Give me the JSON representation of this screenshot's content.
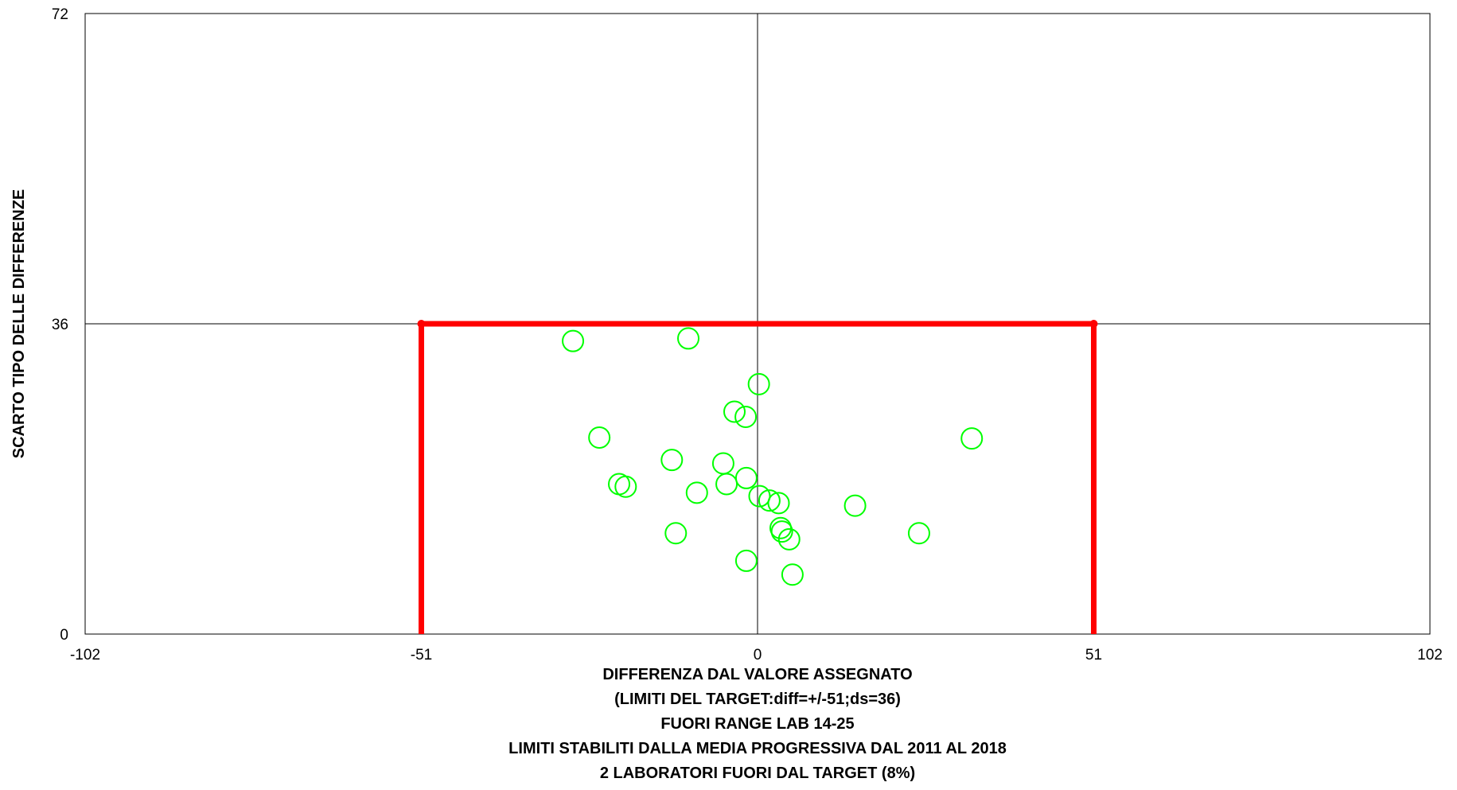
{
  "chart_data": {
    "type": "scatter",
    "title": "",
    "xlabel_lines": [
      "DIFFERENZA DAL VALORE ASSEGNATO",
      "(LIMITI DEL TARGET:diff=+/-51;ds=36)",
      "FUORI RANGE LAB 14-25",
      "LIMITI STABILITI DALLA MEDIA PROGRESSIVA DAL 2011 AL 2018",
      "2 LABORATORI FUORI DAL TARGET (8%)"
    ],
    "ylabel": "SCARTO TIPO DELLE DIFFERENZE",
    "xlim": [
      -102,
      102
    ],
    "ylim": [
      0,
      72
    ],
    "x_ticks": [
      -102,
      -51,
      0,
      51,
      102
    ],
    "x_tick_labels": [
      "-102",
      "-51",
      "0",
      "51",
      "102"
    ],
    "y_ticks": [
      0,
      36,
      72
    ],
    "y_tick_labels": [
      "0",
      "36",
      "72"
    ],
    "grid": {
      "horizontal_at": [
        36
      ],
      "vertical_at": [
        0
      ]
    },
    "target_box": {
      "x_min": -51,
      "x_max": 51,
      "y_max": 36,
      "color": "#ff0000"
    },
    "marker": {
      "shape": "open-circle",
      "color": "#00ff00"
    },
    "series": [
      {
        "points": [
          {
            "x": -28,
            "y": 34.0
          },
          {
            "x": -10.5,
            "y": 34.3
          },
          {
            "x": 0.2,
            "y": 29.0
          },
          {
            "x": -3.5,
            "y": 25.8
          },
          {
            "x": -1.8,
            "y": 25.2
          },
          {
            "x": -24.0,
            "y": 22.8
          },
          {
            "x": 32.5,
            "y": 22.7
          },
          {
            "x": -13.0,
            "y": 20.2
          },
          {
            "x": -5.2,
            "y": 19.8
          },
          {
            "x": -1.7,
            "y": 18.1
          },
          {
            "x": -4.7,
            "y": 17.4
          },
          {
            "x": -21.0,
            "y": 17.4
          },
          {
            "x": -20.0,
            "y": 17.1
          },
          {
            "x": -9.2,
            "y": 16.4
          },
          {
            "x": 0.3,
            "y": 16.0
          },
          {
            "x": 1.8,
            "y": 15.5
          },
          {
            "x": 3.2,
            "y": 15.2
          },
          {
            "x": 14.8,
            "y": 14.9
          },
          {
            "x": 3.5,
            "y": 12.3
          },
          {
            "x": 3.7,
            "y": 11.9
          },
          {
            "x": 4.8,
            "y": 11.0
          },
          {
            "x": -12.4,
            "y": 11.7
          },
          {
            "x": 24.5,
            "y": 11.7
          },
          {
            "x": -1.7,
            "y": 8.5
          },
          {
            "x": 5.3,
            "y": 6.9
          }
        ]
      }
    ]
  }
}
